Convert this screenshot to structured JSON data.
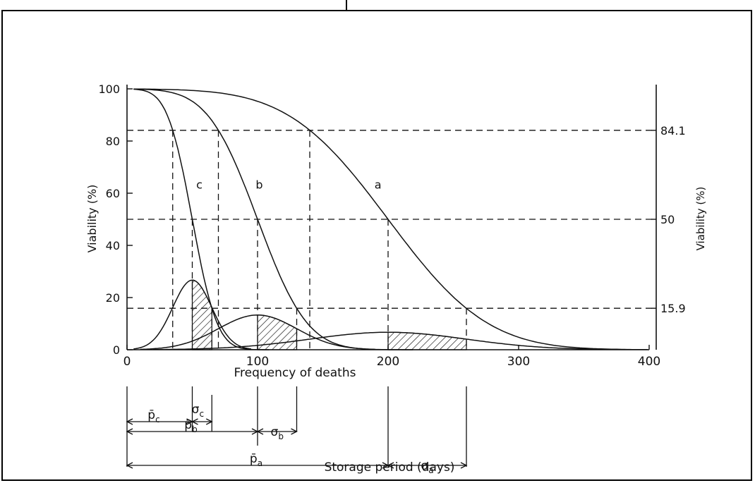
{
  "chart_data": {
    "type": "line",
    "xlabel": "Frequency of deaths",
    "x2label": "Storage period (days)",
    "ylabel_left": "Viability (%)",
    "ylabel_right": "Viability (%)",
    "xlim": [
      0,
      400
    ],
    "ylim": [
      0,
      100
    ],
    "x_ticks": [
      0,
      100,
      200,
      300,
      400
    ],
    "y_ticks": [
      0,
      20,
      40,
      60,
      80,
      100
    ],
    "right_ticks": [
      {
        "value": 84.1,
        "label": "84.1"
      },
      {
        "value": 50,
        "label": "50"
      },
      {
        "value": 15.9,
        "label": "15.9"
      }
    ],
    "series": [
      {
        "name": "a",
        "kind": "survival",
        "mean": 200,
        "sd": 60
      },
      {
        "name": "b",
        "kind": "survival",
        "mean": 100,
        "sd": 30
      },
      {
        "name": "c",
        "kind": "survival",
        "mean": 50,
        "sd": 15
      },
      {
        "kind": "death-frequency",
        "mean": 200,
        "sd": 60,
        "peak": 6.7,
        "shaded_between": [
          200,
          260
        ]
      },
      {
        "kind": "death-frequency",
        "mean": 100,
        "sd": 30,
        "peak": 13.3,
        "shaded_between": [
          100,
          130
        ]
      },
      {
        "kind": "death-frequency",
        "mean": 50,
        "sd": 15,
        "peak": 26.7,
        "shaded_between": [
          50,
          65
        ]
      }
    ],
    "annotations": [
      {
        "symbol": "p̄",
        "sub": "c",
        "x_from": 0,
        "x_to": 50
      },
      {
        "symbol": "σ",
        "sub": "c",
        "x_from": 50,
        "x_to": 65
      },
      {
        "symbol": "p̄",
        "sub": "b",
        "x_from": 0,
        "x_to": 100
      },
      {
        "symbol": "σ",
        "sub": "b",
        "x_from": 100,
        "x_to": 130
      },
      {
        "symbol": "p̄",
        "sub": "a",
        "x_from": 0,
        "x_to": 200
      },
      {
        "symbol": "σ",
        "sub": "a",
        "x_from": 200,
        "x_to": 260
      }
    ]
  }
}
